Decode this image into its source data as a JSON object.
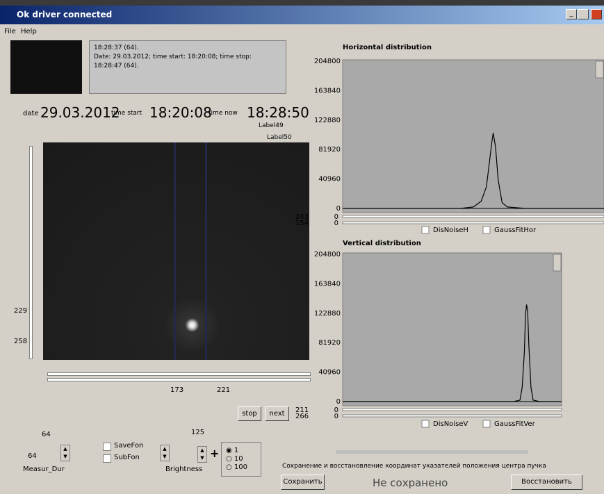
{
  "window": {
    "title": "Ok driver connected"
  },
  "menu": [
    "File",
    "Help"
  ],
  "info": [
    "18:28:37 (64).",
    "Date: 29.03.2012; time start: 18:20:08; time stop:",
    "18:28:47 (64)."
  ],
  "status": {
    "date_label": "date",
    "date": "29.03.2012",
    "start_label": "time start",
    "start": "18:20:08",
    "now_label": "time now",
    "now": "18:28:50",
    "label49": "Label49",
    "label50": "Label50"
  },
  "image": {
    "left_slider": [
      229,
      258
    ],
    "bottom_slider": [
      173,
      221
    ]
  },
  "buttons": [
    "stop",
    "next"
  ],
  "controls": {
    "measur_top": 64,
    "measur_value": 64,
    "measur_label": "Measur_Dur",
    "save_fon": "SaveFon",
    "sub_fon": "SubFon",
    "brightness": "Brightness",
    "step_value": 125,
    "plus": "+",
    "radios": [
      "1",
      "10",
      "100"
    ]
  },
  "plots": [
    {
      "title": "Horizontal distribution",
      "ylim": [
        0,
        204800
      ],
      "yticks": [
        0,
        40960,
        81920,
        122880,
        163840,
        204800
      ],
      "xlim": [
        0,
        100
      ],
      "x": [
        0,
        45,
        50,
        53,
        55,
        56,
        57,
        57.6,
        58.5,
        59.5,
        61,
        63,
        70,
        100
      ],
      "values": [
        0,
        0,
        2000,
        10000,
        30000,
        60000,
        90000,
        105000,
        85000,
        40000,
        8000,
        2000,
        0,
        0
      ],
      "sliders": [
        [
          243,
          0
        ],
        [
          154,
          0
        ]
      ],
      "checks": [
        "DisNoiseH",
        "GaussFitHor"
      ]
    },
    {
      "title": "Vertical distribution",
      "ylim": [
        0,
        204800
      ],
      "yticks": [
        0,
        40960,
        81920,
        122880,
        163840,
        204800
      ],
      "xlim": [
        0,
        100
      ],
      "x": [
        0,
        78,
        81,
        82,
        83,
        83.5,
        84,
        84.5,
        85,
        86,
        87,
        90,
        100
      ],
      "values": [
        0,
        0,
        2000,
        20000,
        70000,
        120000,
        135000,
        125000,
        80000,
        20000,
        2000,
        0,
        0
      ],
      "sliders": [
        [
          211,
          0
        ],
        [
          266,
          0
        ]
      ],
      "checks": [
        "DisNoiseV",
        "GaussFitVer"
      ]
    }
  ],
  "footer": {
    "caption": "Сохранение и восстановление координат указателей положения центра пучка",
    "save": "Сохранить",
    "state": "Не сохранено",
    "restore": "Восстановить"
  }
}
